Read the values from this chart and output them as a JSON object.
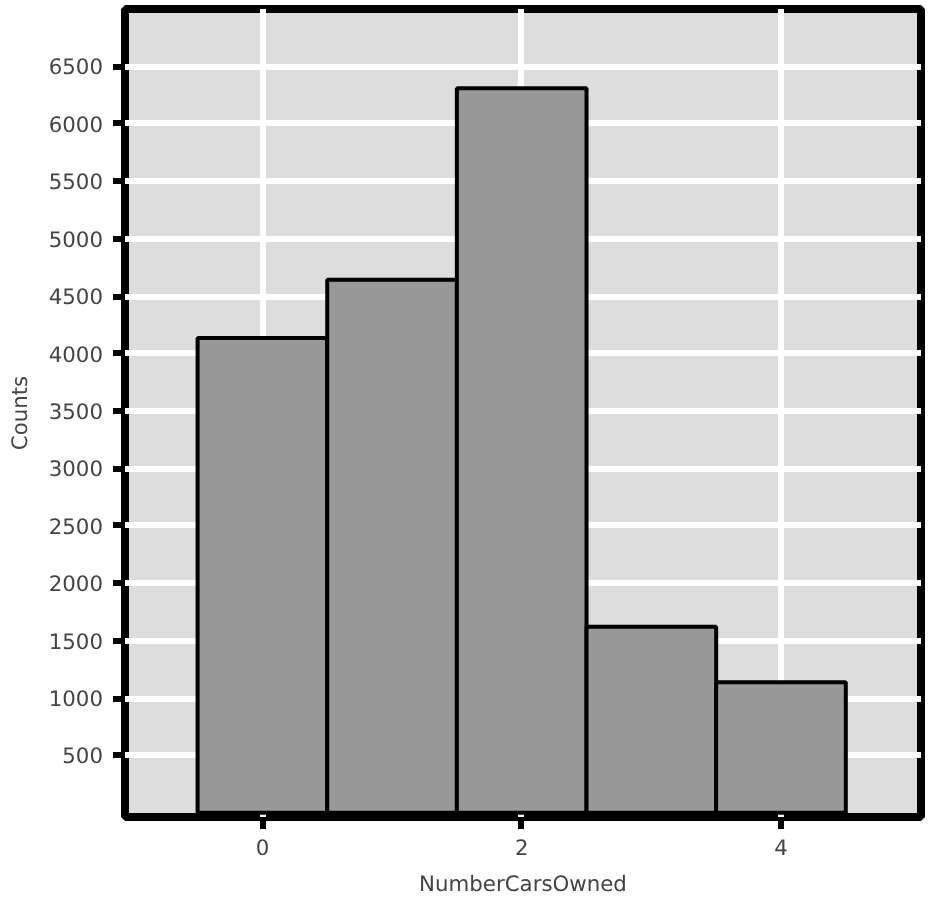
{
  "chart_data": {
    "type": "histogram",
    "xlabel": "NumberCarsOwned",
    "ylabel": "Counts",
    "bins": [
      -0.5,
      0.5,
      1.5,
      2.5,
      3.5,
      4.5
    ],
    "values": [
      4136,
      4642,
      6309,
      1621,
      1138
    ],
    "color": "#999999",
    "xlim": [
      -1.06,
      5.08
    ],
    "ylim": [
      -36,
      7000
    ],
    "xticks": [
      0,
      2,
      4
    ],
    "yticks": [
      500,
      1000,
      1500,
      2000,
      2500,
      3000,
      3500,
      4000,
      4500,
      5000,
      5500,
      6000,
      6500
    ],
    "grid": true
  }
}
